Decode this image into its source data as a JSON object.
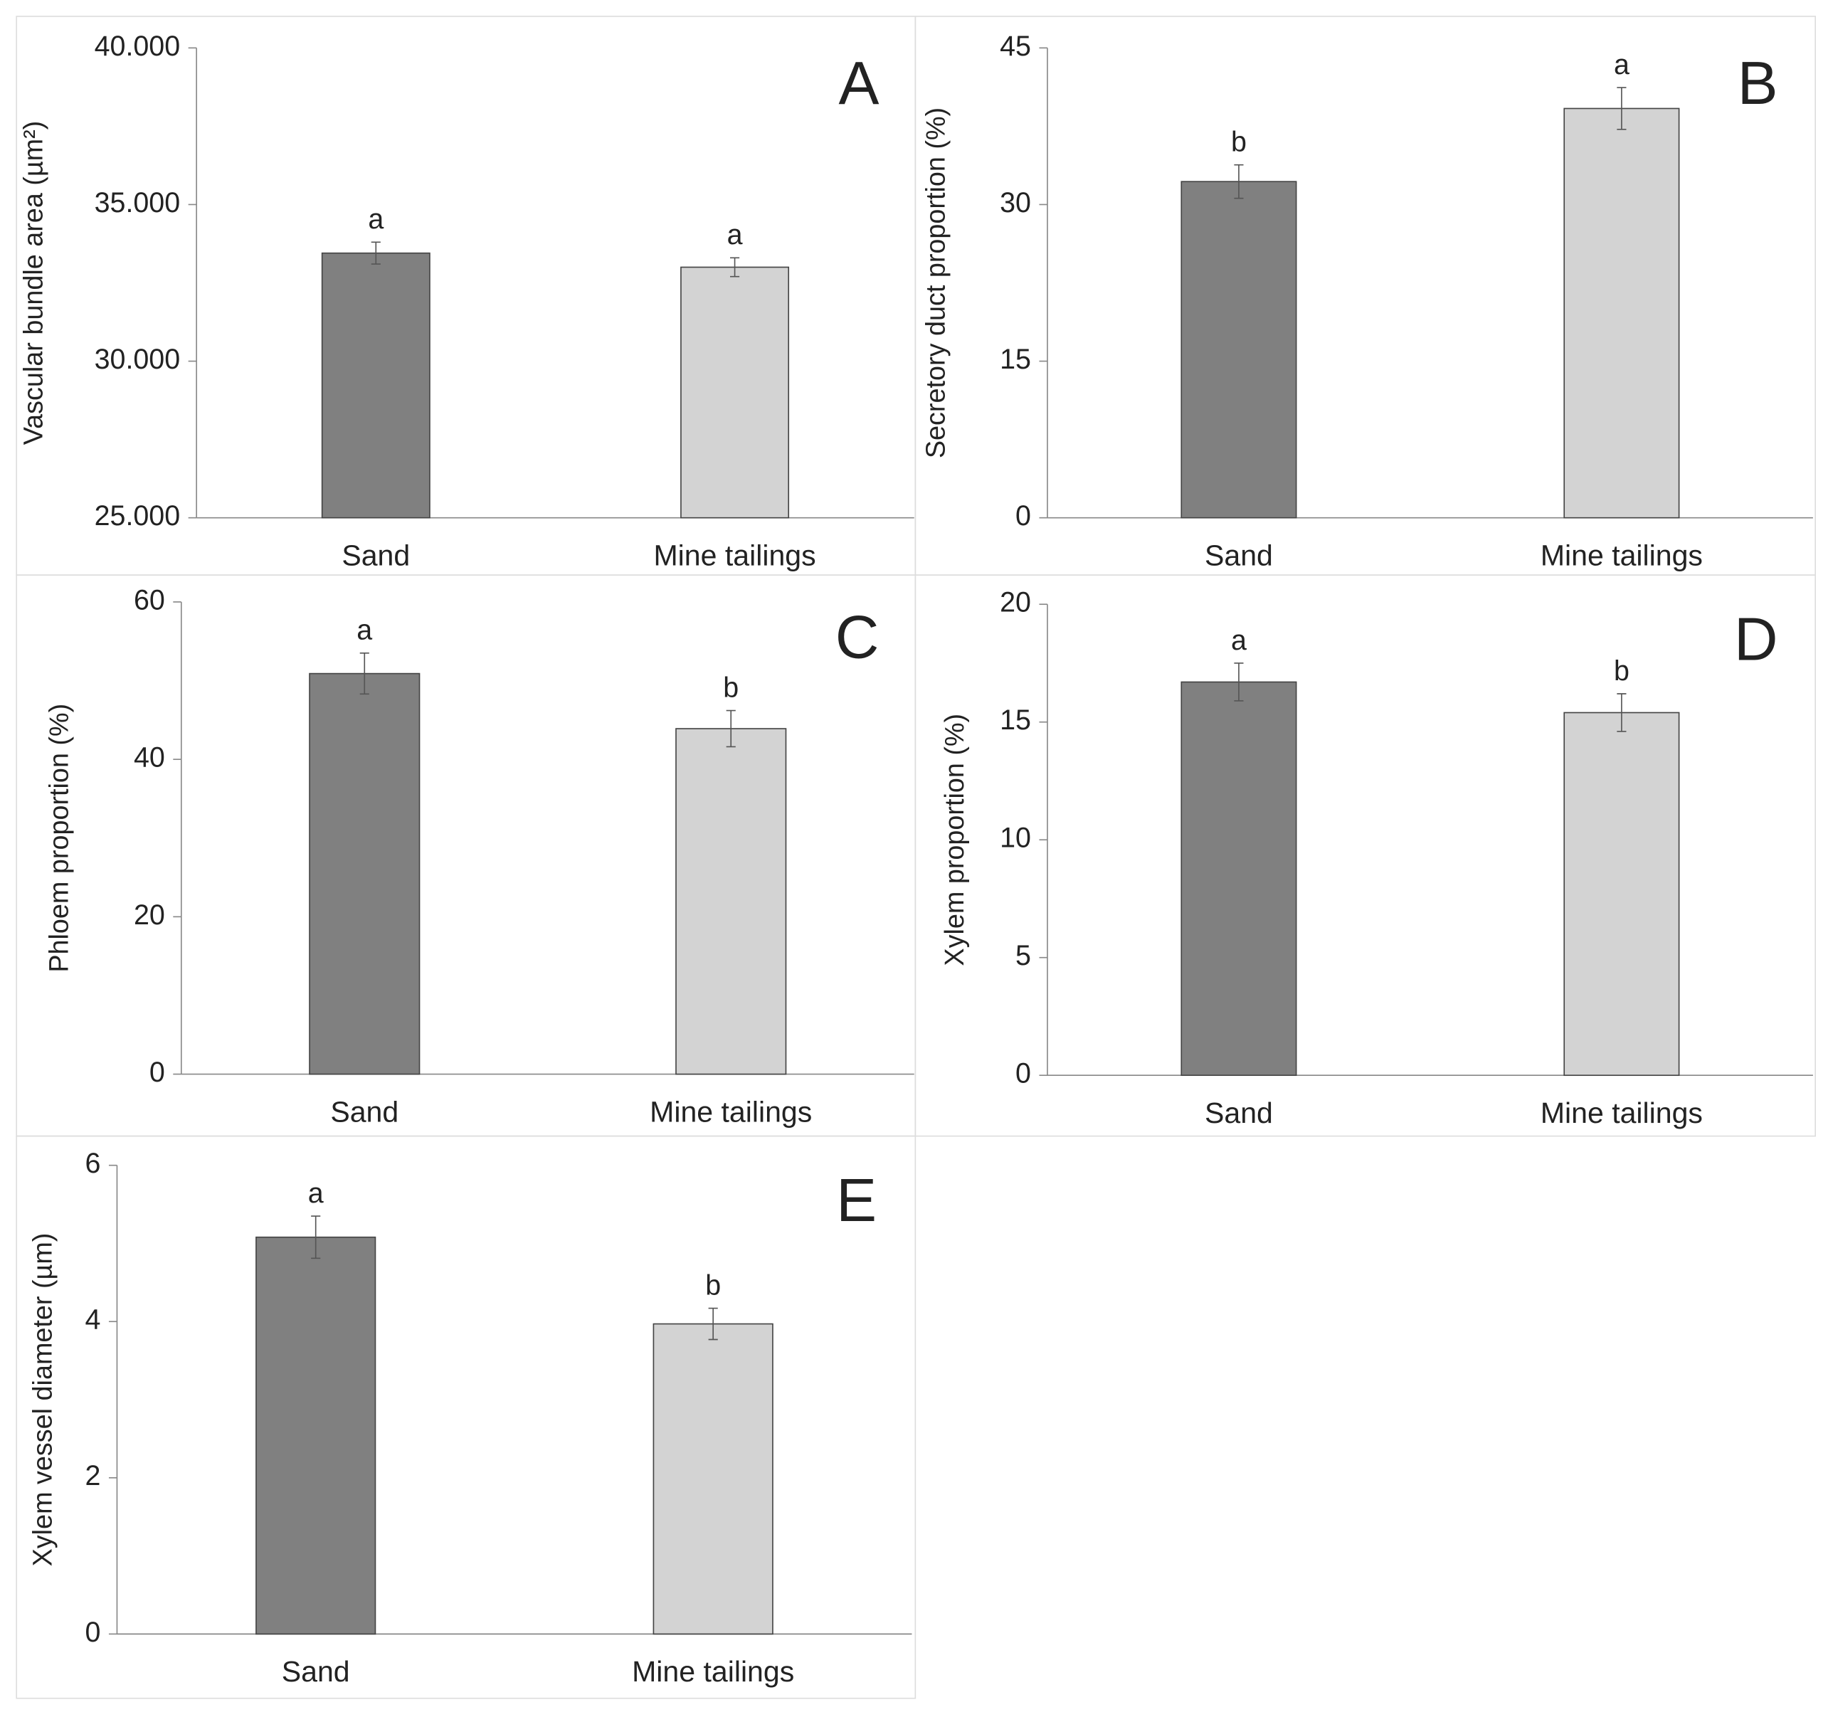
{
  "chart_data": [
    {
      "type": "bar",
      "panel": "A",
      "ylabel": "Vascular bundle area (µm²)",
      "categories": [
        "Sand",
        "Mine tailings"
      ],
      "values": [
        33450,
        33000
      ],
      "errors": [
        350,
        300
      ],
      "annotations": [
        "a",
        "a"
      ],
      "colors": [
        "#808080",
        "#d3d3d3"
      ],
      "ylim": [
        25000,
        40000
      ],
      "yticks": [
        {
          "value": 25000,
          "label": "25.000"
        },
        {
          "value": 30000,
          "label": "30.000"
        },
        {
          "value": 35000,
          "label": "35.000"
        },
        {
          "value": 40000,
          "label": "40.000"
        }
      ]
    },
    {
      "type": "bar",
      "panel": "B",
      "ylabel": "Secretory duct proportion (%)",
      "categories": [
        "Sand",
        "Mine tailings"
      ],
      "values": [
        32.2,
        39.2
      ],
      "errors": [
        1.6,
        2.0
      ],
      "annotations": [
        "b",
        "a"
      ],
      "colors": [
        "#808080",
        "#d3d3d3"
      ],
      "ylim": [
        0,
        45
      ],
      "yticks": [
        0,
        15,
        30,
        45
      ]
    },
    {
      "type": "bar",
      "panel": "C",
      "ylabel": "Phloem proportion (%)",
      "categories": [
        "Sand",
        "Mine tailings"
      ],
      "values": [
        50.9,
        43.9
      ],
      "errors": [
        2.6,
        2.3
      ],
      "annotations": [
        "a",
        "b"
      ],
      "colors": [
        "#808080",
        "#d3d3d3"
      ],
      "ylim": [
        0,
        60
      ],
      "yticks": [
        0,
        20,
        40,
        60
      ]
    },
    {
      "type": "bar",
      "panel": "D",
      "ylabel": "Xylem proportion (%)",
      "categories": [
        "Sand",
        "Mine tailings"
      ],
      "values": [
        16.7,
        15.4
      ],
      "errors": [
        0.8,
        0.8
      ],
      "annotations": [
        "a",
        "b"
      ],
      "colors": [
        "#808080",
        "#d3d3d3"
      ],
      "ylim": [
        0,
        20
      ],
      "yticks": [
        0,
        5,
        10,
        15,
        20
      ]
    },
    {
      "type": "bar",
      "panel": "E",
      "ylabel": "Xylem vessel diameter (µm)",
      "categories": [
        "Sand",
        "Mine tailings"
      ],
      "values": [
        5.08,
        3.97
      ],
      "errors": [
        0.27,
        0.2
      ],
      "annotations": [
        "a",
        "b"
      ],
      "colors": [
        "#808080",
        "#d3d3d3"
      ],
      "ylim": [
        0,
        6
      ],
      "yticks": [
        0,
        2,
        4,
        6
      ]
    }
  ]
}
